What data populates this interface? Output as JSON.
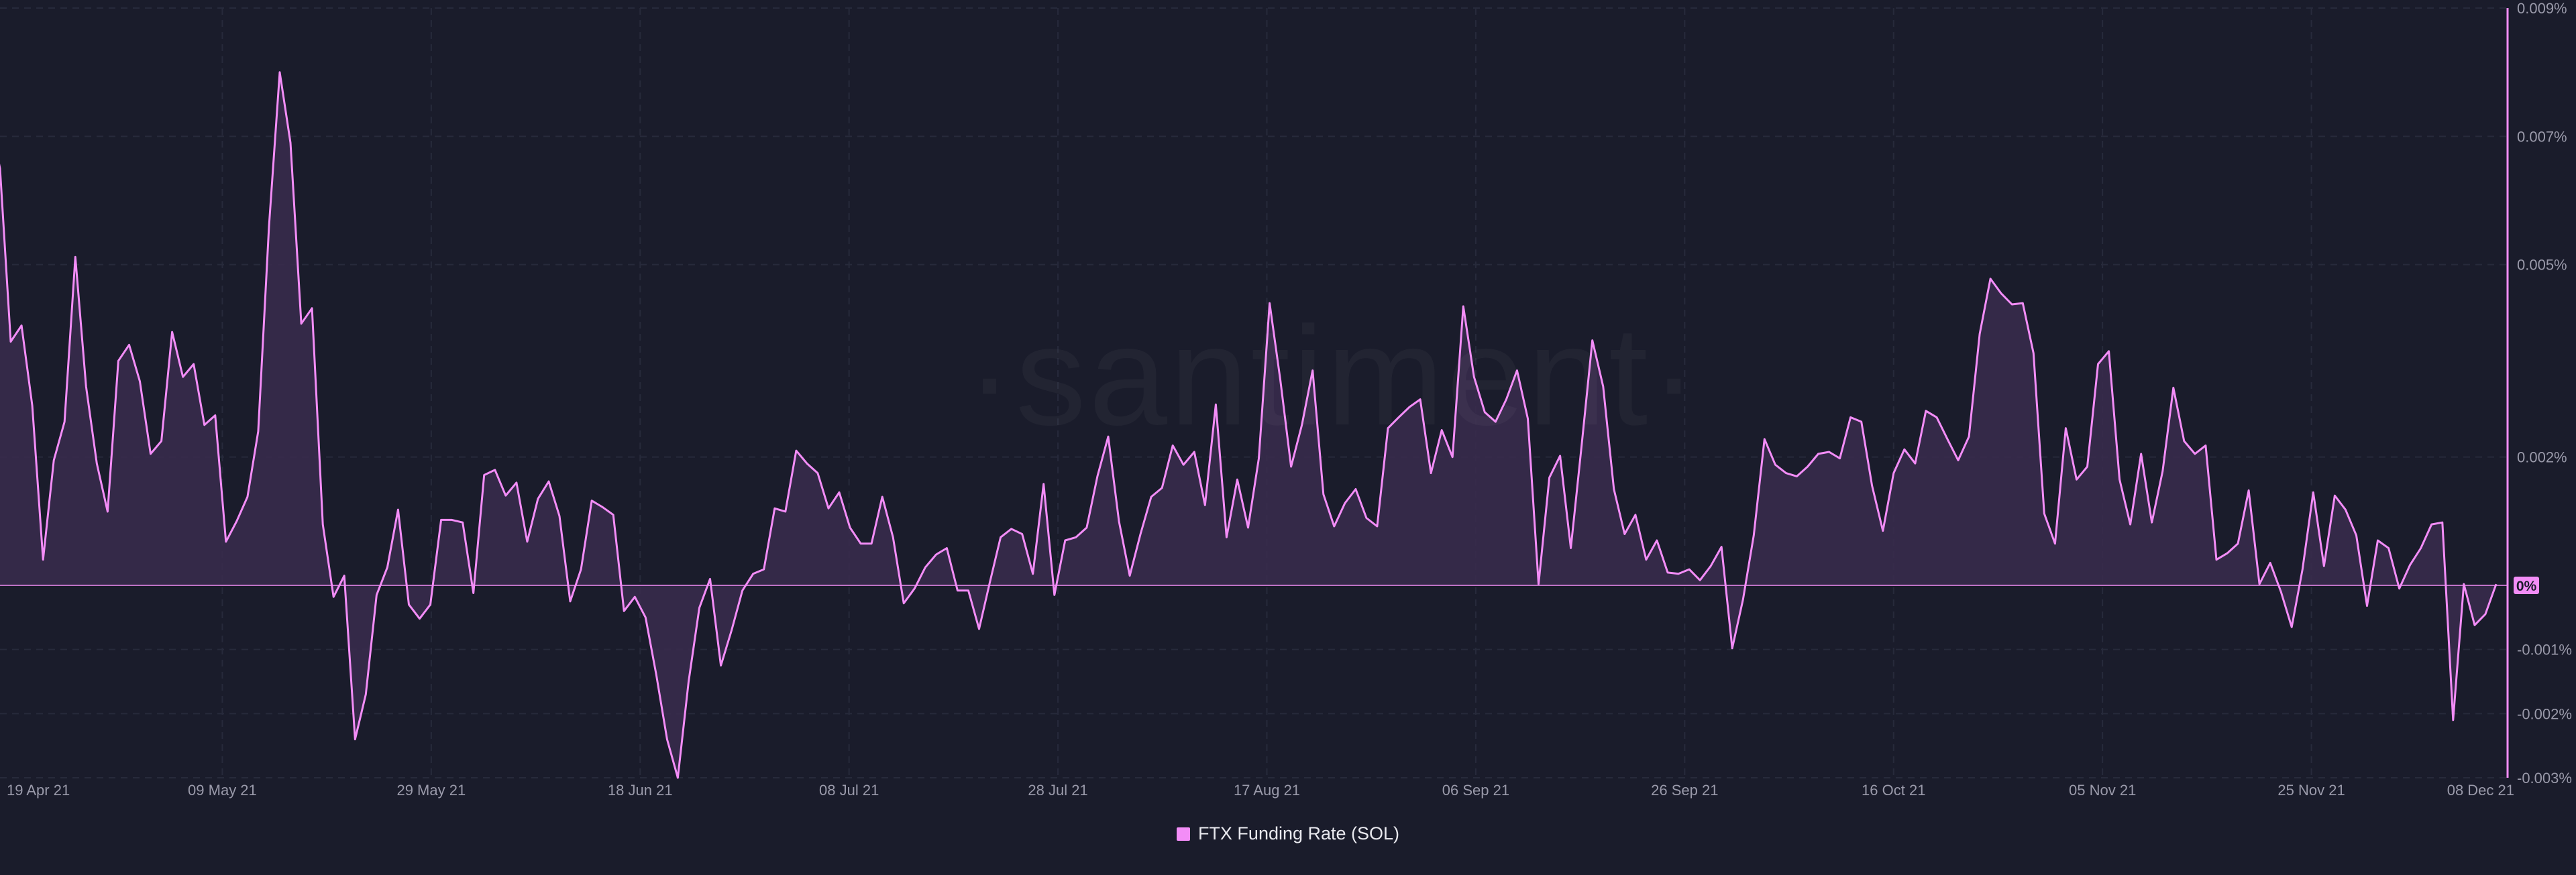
{
  "brand": {
    "watermark": "·santiment·"
  },
  "colors": {
    "background": "#1a1c2b",
    "line": "#f38df7",
    "area": "#3a2c4d",
    "grid": "#272a3b",
    "axis_text": "#9a9aaa",
    "zero_badge": "#f38df7",
    "zero_badge_text": "#1a1c2b"
  },
  "chart_data": {
    "type": "area",
    "x_axis_type": "date",
    "x_start": "2021-04-19",
    "x_end": "2021-12-08",
    "y_unit": "%",
    "ylim": [
      -0.003,
      0.009
    ],
    "grid": true,
    "legend_position": "bottom",
    "x_tick_labels": [
      "19 Apr 21",
      "09 May 21",
      "29 May 21",
      "18 Jun 21",
      "08 Jul 21",
      "28 Jul 21",
      "17 Aug 21",
      "06 Sep 21",
      "26 Sep 21",
      "16 Oct 21",
      "05 Nov 21",
      "25 Nov 21",
      "08 Dec 21"
    ],
    "y_tick_labels": [
      {
        "value": 0.009,
        "label": "0.009%"
      },
      {
        "value": 0.007,
        "label": "0.007%"
      },
      {
        "value": 0.005,
        "label": "0.005%"
      },
      {
        "value": 0.002,
        "label": "0.002%"
      },
      {
        "value": 0.0,
        "label": "0%"
      },
      {
        "value": -0.001,
        "label": "-0.001%"
      },
      {
        "value": -0.002,
        "label": "-0.002%"
      },
      {
        "value": -0.003,
        "label": "-0.003%"
      }
    ],
    "series": [
      {
        "name": "FTX Funding Rate (SOL)",
        "points": [
          [
            "2021-04-18",
            0.0073
          ],
          [
            "2021-04-19",
            0.0065
          ],
          [
            "2021-04-20",
            0.0038
          ],
          [
            "2021-04-21",
            0.00405
          ],
          [
            "2021-04-22",
            0.0028
          ],
          [
            "2021-04-23",
            0.0004
          ],
          [
            "2021-04-24",
            0.00195
          ],
          [
            "2021-04-25",
            0.00255
          ],
          [
            "2021-04-26",
            0.00512
          ],
          [
            "2021-04-27",
            0.0031
          ],
          [
            "2021-04-28",
            0.0019
          ],
          [
            "2021-04-29",
            0.00115
          ],
          [
            "2021-04-30",
            0.0035
          ],
          [
            "2021-05-01",
            0.00375
          ],
          [
            "2021-05-02",
            0.00318
          ],
          [
            "2021-05-03",
            0.00205
          ],
          [
            "2021-05-04",
            0.00225
          ],
          [
            "2021-05-05",
            0.00395
          ],
          [
            "2021-05-06",
            0.00325
          ],
          [
            "2021-05-07",
            0.00345
          ],
          [
            "2021-05-08",
            0.0025
          ],
          [
            "2021-05-09",
            0.00265
          ],
          [
            "2021-05-10",
            0.00068
          ],
          [
            "2021-05-11",
            0.001
          ],
          [
            "2021-05-12",
            0.00138
          ],
          [
            "2021-05-13",
            0.0024
          ],
          [
            "2021-05-14",
            0.0056
          ],
          [
            "2021-05-15",
            0.008
          ],
          [
            "2021-05-16",
            0.0069
          ],
          [
            "2021-05-17",
            0.00408
          ],
          [
            "2021-05-18",
            0.00432
          ],
          [
            "2021-05-19",
            0.00095
          ],
          [
            "2021-05-20",
            -0.00018
          ],
          [
            "2021-05-21",
            0.00015
          ],
          [
            "2021-05-22",
            -0.0024
          ],
          [
            "2021-05-23",
            -0.0017
          ],
          [
            "2021-05-24",
            -0.00015
          ],
          [
            "2021-05-25",
            0.00028
          ],
          [
            "2021-05-26",
            0.00118
          ],
          [
            "2021-05-27",
            -0.0003
          ],
          [
            "2021-05-28",
            -0.00052
          ],
          [
            "2021-05-29",
            -0.0003
          ],
          [
            "2021-05-30",
            0.00102
          ],
          [
            "2021-05-31",
            0.00102
          ],
          [
            "2021-06-01",
            0.00098
          ],
          [
            "2021-06-02",
            -0.00012
          ],
          [
            "2021-06-03",
            0.00172
          ],
          [
            "2021-06-04",
            0.0018
          ],
          [
            "2021-06-05",
            0.0014
          ],
          [
            "2021-06-06",
            0.0016
          ],
          [
            "2021-06-07",
            0.00068
          ],
          [
            "2021-06-08",
            0.00135
          ],
          [
            "2021-06-09",
            0.00162
          ],
          [
            "2021-06-10",
            0.00108
          ],
          [
            "2021-06-11",
            -0.00025
          ],
          [
            "2021-06-12",
            0.00025
          ],
          [
            "2021-06-13",
            0.00132
          ],
          [
            "2021-06-14",
            0.00122
          ],
          [
            "2021-06-15",
            0.0011
          ],
          [
            "2021-06-16",
            -0.0004
          ],
          [
            "2021-06-17",
            -0.00018
          ],
          [
            "2021-06-18",
            -0.0005
          ],
          [
            "2021-06-19",
            -0.0014
          ],
          [
            "2021-06-20",
            -0.0024
          ],
          [
            "2021-06-21",
            -0.003
          ],
          [
            "2021-06-22",
            -0.0015
          ],
          [
            "2021-06-23",
            -0.00035
          ],
          [
            "2021-06-24",
            0.0001
          ],
          [
            "2021-06-25",
            -0.00125
          ],
          [
            "2021-06-26",
            -0.0007
          ],
          [
            "2021-06-27",
            -8e-05
          ],
          [
            "2021-06-28",
            0.00018
          ],
          [
            "2021-06-29",
            0.00025
          ],
          [
            "2021-06-30",
            0.0012
          ],
          [
            "2021-07-01",
            0.00115
          ],
          [
            "2021-07-02",
            0.0021
          ],
          [
            "2021-07-03",
            0.0019
          ],
          [
            "2021-07-04",
            0.00175
          ],
          [
            "2021-07-05",
            0.0012
          ],
          [
            "2021-07-06",
            0.00145
          ],
          [
            "2021-07-07",
            0.0009
          ],
          [
            "2021-07-08",
            0.00065
          ],
          [
            "2021-07-09",
            0.00065
          ],
          [
            "2021-07-10",
            0.00138
          ],
          [
            "2021-07-11",
            0.00075
          ],
          [
            "2021-07-12",
            -0.00028
          ],
          [
            "2021-07-13",
            -5e-05
          ],
          [
            "2021-07-14",
            0.00028
          ],
          [
            "2021-07-15",
            0.00048
          ],
          [
            "2021-07-16",
            0.00058
          ],
          [
            "2021-07-17",
            -8e-05
          ],
          [
            "2021-07-18",
            -8e-05
          ],
          [
            "2021-07-19",
            -0.00068
          ],
          [
            "2021-07-20",
            5e-05
          ],
          [
            "2021-07-21",
            0.00075
          ],
          [
            "2021-07-22",
            0.00088
          ],
          [
            "2021-07-23",
            0.0008
          ],
          [
            "2021-07-24",
            0.00018
          ],
          [
            "2021-07-25",
            0.00158
          ],
          [
            "2021-07-26",
            -0.00015
          ],
          [
            "2021-07-27",
            0.0007
          ],
          [
            "2021-07-28",
            0.00075
          ],
          [
            "2021-07-29",
            0.0009
          ],
          [
            "2021-07-30",
            0.0017
          ],
          [
            "2021-07-31",
            0.00232
          ],
          [
            "2021-08-01",
            0.001
          ],
          [
            "2021-08-02",
            0.00015
          ],
          [
            "2021-08-03",
            0.0008
          ],
          [
            "2021-08-04",
            0.00138
          ],
          [
            "2021-08-05",
            0.00152
          ],
          [
            "2021-08-06",
            0.00218
          ],
          [
            "2021-08-07",
            0.00188
          ],
          [
            "2021-08-08",
            0.00208
          ],
          [
            "2021-08-09",
            0.00125
          ],
          [
            "2021-08-10",
            0.00282
          ],
          [
            "2021-08-11",
            0.00075
          ],
          [
            "2021-08-12",
            0.00165
          ],
          [
            "2021-08-13",
            0.0009
          ],
          [
            "2021-08-14",
            0.00198
          ],
          [
            "2021-08-15",
            0.0044
          ],
          [
            "2021-08-16",
            0.0032
          ],
          [
            "2021-08-17",
            0.00185
          ],
          [
            "2021-08-18",
            0.0025
          ],
          [
            "2021-08-19",
            0.00335
          ],
          [
            "2021-08-20",
            0.00142
          ],
          [
            "2021-08-21",
            0.00092
          ],
          [
            "2021-08-22",
            0.00128
          ],
          [
            "2021-08-23",
            0.0015
          ],
          [
            "2021-08-24",
            0.00105
          ],
          [
            "2021-08-25",
            0.00092
          ],
          [
            "2021-08-26",
            0.00245
          ],
          [
            "2021-08-27",
            0.00262
          ],
          [
            "2021-08-28",
            0.00278
          ],
          [
            "2021-08-29",
            0.0029
          ],
          [
            "2021-08-30",
            0.00175
          ],
          [
            "2021-08-31",
            0.00242
          ],
          [
            "2021-09-01",
            0.002
          ],
          [
            "2021-09-02",
            0.00435
          ],
          [
            "2021-09-03",
            0.00325
          ],
          [
            "2021-09-04",
            0.0027
          ],
          [
            "2021-09-05",
            0.00255
          ],
          [
            "2021-09-06",
            0.0029
          ],
          [
            "2021-09-07",
            0.00335
          ],
          [
            "2021-09-08",
            0.0026
          ],
          [
            "2021-09-09",
            2e-05
          ],
          [
            "2021-09-10",
            0.00168
          ],
          [
            "2021-09-11",
            0.00202
          ],
          [
            "2021-09-12",
            0.00058
          ],
          [
            "2021-09-13",
            0.00218
          ],
          [
            "2021-09-14",
            0.00382
          ],
          [
            "2021-09-15",
            0.0031
          ],
          [
            "2021-09-16",
            0.0015
          ],
          [
            "2021-09-17",
            0.0008
          ],
          [
            "2021-09-18",
            0.0011
          ],
          [
            "2021-09-19",
            0.0004
          ],
          [
            "2021-09-20",
            0.0007
          ],
          [
            "2021-09-21",
            0.0002
          ],
          [
            "2021-09-22",
            0.00018
          ],
          [
            "2021-09-23",
            0.00025
          ],
          [
            "2021-09-24",
            8e-05
          ],
          [
            "2021-09-25",
            0.0003
          ],
          [
            "2021-09-26",
            0.0006
          ],
          [
            "2021-09-27",
            -0.00098
          ],
          [
            "2021-09-28",
            -0.00022
          ],
          [
            "2021-09-29",
            0.00078
          ],
          [
            "2021-09-30",
            0.00228
          ],
          [
            "2021-10-01",
            0.00188
          ],
          [
            "2021-10-02",
            0.00175
          ],
          [
            "2021-10-03",
            0.0017
          ],
          [
            "2021-10-04",
            0.00185
          ],
          [
            "2021-10-05",
            0.00205
          ],
          [
            "2021-10-06",
            0.00208
          ],
          [
            "2021-10-07",
            0.00198
          ],
          [
            "2021-10-08",
            0.00262
          ],
          [
            "2021-10-09",
            0.00255
          ],
          [
            "2021-10-10",
            0.00155
          ],
          [
            "2021-10-11",
            0.00085
          ],
          [
            "2021-10-12",
            0.00175
          ],
          [
            "2021-10-13",
            0.00212
          ],
          [
            "2021-10-14",
            0.0019
          ],
          [
            "2021-10-15",
            0.00272
          ],
          [
            "2021-10-16",
            0.00262
          ],
          [
            "2021-10-17",
            0.00228
          ],
          [
            "2021-10-18",
            0.00195
          ],
          [
            "2021-10-19",
            0.00232
          ],
          [
            "2021-10-20",
            0.00392
          ],
          [
            "2021-10-21",
            0.00478
          ],
          [
            "2021-10-22",
            0.00455
          ],
          [
            "2021-10-23",
            0.00438
          ],
          [
            "2021-10-24",
            0.0044
          ],
          [
            "2021-10-25",
            0.00362
          ],
          [
            "2021-10-26",
            0.00112
          ],
          [
            "2021-10-27",
            0.00065
          ],
          [
            "2021-10-28",
            0.00245
          ],
          [
            "2021-10-29",
            0.00165
          ],
          [
            "2021-10-30",
            0.00185
          ],
          [
            "2021-10-31",
            0.00345
          ],
          [
            "2021-11-01",
            0.00365
          ],
          [
            "2021-11-02",
            0.00165
          ],
          [
            "2021-11-03",
            0.00095
          ],
          [
            "2021-11-04",
            0.00205
          ],
          [
            "2021-11-05",
            0.00098
          ],
          [
            "2021-11-06",
            0.00178
          ],
          [
            "2021-11-07",
            0.00308
          ],
          [
            "2021-11-08",
            0.00225
          ],
          [
            "2021-11-09",
            0.00205
          ],
          [
            "2021-11-10",
            0.00218
          ],
          [
            "2021-11-11",
            0.0004
          ],
          [
            "2021-11-12",
            0.0005
          ],
          [
            "2021-11-13",
            0.00065
          ],
          [
            "2021-11-14",
            0.00148
          ],
          [
            "2021-11-15",
            2e-05
          ],
          [
            "2021-11-16",
            0.00035
          ],
          [
            "2021-11-17",
            -0.0001
          ],
          [
            "2021-11-18",
            -0.00065
          ],
          [
            "2021-11-19",
            0.00025
          ],
          [
            "2021-11-20",
            0.00145
          ],
          [
            "2021-11-21",
            0.0003
          ],
          [
            "2021-11-22",
            0.0014
          ],
          [
            "2021-11-23",
            0.00118
          ],
          [
            "2021-11-24",
            0.00078
          ],
          [
            "2021-11-25",
            -0.00032
          ],
          [
            "2021-11-26",
            0.0007
          ],
          [
            "2021-11-27",
            0.00058
          ],
          [
            "2021-11-28",
            -5e-05
          ],
          [
            "2021-11-29",
            0.00032
          ],
          [
            "2021-11-30",
            0.00058
          ],
          [
            "2021-12-01",
            0.00095
          ],
          [
            "2021-12-02",
            0.00098
          ],
          [
            "2021-12-03",
            -0.0021
          ],
          [
            "2021-12-04",
            2e-05
          ],
          [
            "2021-12-05",
            -0.00062
          ],
          [
            "2021-12-06",
            -0.00045
          ],
          [
            "2021-12-07",
            2e-05
          ]
        ]
      }
    ]
  }
}
